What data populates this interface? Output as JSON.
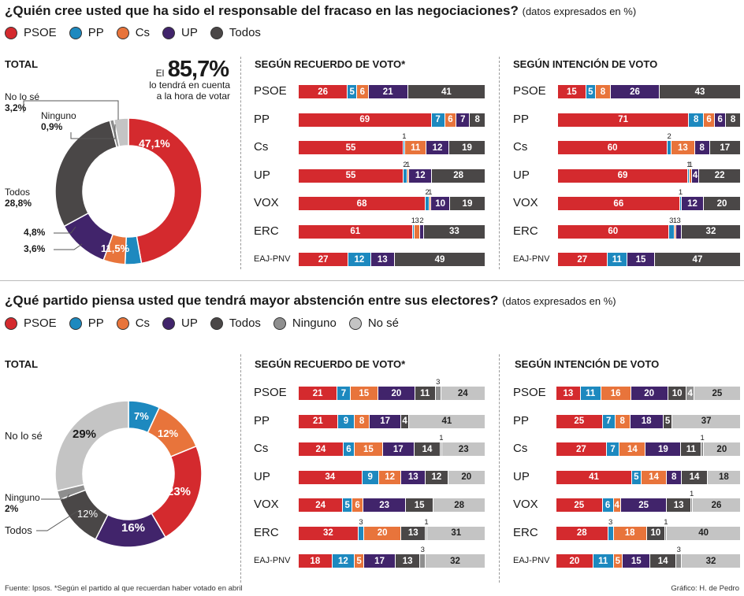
{
  "colors": {
    "PSOE": "#d42a2e",
    "PP": "#1d89bf",
    "Cs": "#e8743b",
    "UP": "#41246b",
    "Todos": "#4a4747",
    "Ninguno": "#8e8e8e",
    "No se": "#c4c4c4"
  },
  "q1": {
    "title": "¿Quién cree usted que ha sido el responsable del fracaso en las negociaciones?",
    "subtitle": "(datos expresados en %)",
    "legend": [
      {
        "label": "PSOE",
        "key": "PSOE"
      },
      {
        "label": "PP",
        "key": "PP"
      },
      {
        "label": "Cs",
        "key": "Cs"
      },
      {
        "label": "UP",
        "key": "UP"
      },
      {
        "label": "Todos",
        "key": "Todos"
      }
    ],
    "total_label": "TOTAL",
    "callout_el": "El",
    "callout_value": "85,7%",
    "callout_text1": "lo tendrá en cuenta",
    "callout_text2": "a la hora de votar",
    "header_recuerdo": "SEGÚN RECUERDO DE VOTO*",
    "header_intencion": "SEGÚN INTENCIÓN DE VOTO",
    "pie_labels": {
      "nose": "No lo sé",
      "nose_v": "3,2%",
      "ninguno": "Ninguno",
      "ninguno_v": "0,9%",
      "todos": "Todos",
      "todos_v": "28,8%",
      "cs_v": "4,8%",
      "pp_v": "3,6%",
      "up_v": "11,5%",
      "psoe_v": "47,1%"
    }
  },
  "q2": {
    "title": "¿Qué partido piensa usted que tendrá mayor abstención entre sus electores?",
    "subtitle": "(datos expresados en %)",
    "legend": [
      {
        "label": "PSOE",
        "key": "PSOE"
      },
      {
        "label": "PP",
        "key": "PP"
      },
      {
        "label": "Cs",
        "key": "Cs"
      },
      {
        "label": "UP",
        "key": "UP"
      },
      {
        "label": "Todos",
        "key": "Todos"
      },
      {
        "label": "Ninguno",
        "key": "Ninguno"
      },
      {
        "label": "No sé",
        "key": "No se"
      }
    ],
    "total_label": "TOTAL",
    "header_recuerdo": "SEGÚN RECUERDO DE VOTO*",
    "header_intencion": "SEGÚN INTENCIÓN DE VOTO",
    "pie_labels": {
      "nose": "No lo sé",
      "nose_v": "29%",
      "ninguno": "Ninguno",
      "ninguno_v": "2%",
      "todos": "Todos",
      "todos_v": "12%",
      "pp_v": "7%",
      "cs_v": "12%",
      "psoe_v": "23%",
      "up_v": "16%"
    }
  },
  "footer": {
    "source": "Fuente: Ipsos. *Según el partido al que recuerdan haber votado en abril",
    "credit": "Gráfico: H. de Pedro"
  },
  "chart_data": [
    {
      "type": "pie",
      "title": "TOTAL",
      "categories": [
        "PSOE",
        "PP",
        "Cs",
        "UP",
        "Todos",
        "Ninguno",
        "No lo sé"
      ],
      "values": [
        47.1,
        3.6,
        4.8,
        11.5,
        28.8,
        0.9,
        3.2
      ]
    },
    {
      "type": "bar",
      "title": "SEGÚN RECUERDO DE VOTO*",
      "categories": [
        "PSOE",
        "PP",
        "Cs",
        "UP",
        "VOX",
        "ERC",
        "EAJ-PNV"
      ],
      "series": [
        {
          "name": "PSOE",
          "values": [
            26,
            69,
            55,
            55,
            68,
            61,
            27
          ]
        },
        {
          "name": "PP",
          "values": [
            5,
            7,
            1,
            2,
            2,
            1,
            12
          ]
        },
        {
          "name": "Cs",
          "values": [
            6,
            6,
            11,
            1,
            1,
            3,
            0
          ]
        },
        {
          "name": "UP",
          "values": [
            21,
            7,
            12,
            12,
            10,
            2,
            13
          ]
        },
        {
          "name": "Todos",
          "values": [
            41,
            8,
            19,
            28,
            19,
            33,
            49
          ]
        }
      ]
    },
    {
      "type": "bar",
      "title": "SEGÚN INTENCIÓN DE VOTO",
      "categories": [
        "PSOE",
        "PP",
        "Cs",
        "UP",
        "VOX",
        "ERC",
        "EAJ-PNV"
      ],
      "series": [
        {
          "name": "PSOE",
          "values": [
            15,
            71,
            60,
            69,
            66,
            60,
            27
          ]
        },
        {
          "name": "PP",
          "values": [
            5,
            8,
            2,
            1,
            1,
            3,
            11
          ]
        },
        {
          "name": "Cs",
          "values": [
            8,
            6,
            13,
            1,
            0,
            1,
            0
          ]
        },
        {
          "name": "UP",
          "values": [
            26,
            6,
            8,
            4,
            12,
            3,
            15
          ]
        },
        {
          "name": "Todos",
          "values": [
            43,
            8,
            17,
            22,
            20,
            32,
            47
          ]
        }
      ]
    },
    {
      "type": "pie",
      "title": "TOTAL",
      "categories": [
        "PP",
        "Cs",
        "PSOE",
        "UP",
        "Todos",
        "Ninguno",
        "No lo sé"
      ],
      "values": [
        7,
        12,
        23,
        16,
        12,
        2,
        29
      ]
    },
    {
      "type": "bar",
      "title": "SEGÚN RECUERDO DE VOTO*",
      "categories": [
        "PSOE",
        "PP",
        "Cs",
        "UP",
        "VOX",
        "ERC",
        "EAJ-PNV"
      ],
      "series": [
        {
          "name": "PSOE",
          "values": [
            21,
            21,
            24,
            34,
            24,
            32,
            18
          ]
        },
        {
          "name": "PP",
          "values": [
            7,
            9,
            6,
            9,
            5,
            3,
            12
          ]
        },
        {
          "name": "Cs",
          "values": [
            15,
            8,
            15,
            12,
            6,
            20,
            5
          ]
        },
        {
          "name": "UP",
          "values": [
            20,
            17,
            17,
            13,
            23,
            0,
            17
          ]
        },
        {
          "name": "Todos",
          "values": [
            11,
            4,
            14,
            12,
            15,
            13,
            13
          ]
        },
        {
          "name": "Ninguno",
          "values": [
            3,
            0,
            1,
            0,
            0,
            1,
            3
          ]
        },
        {
          "name": "No sé",
          "values": [
            24,
            41,
            23,
            20,
            28,
            31,
            32
          ]
        }
      ]
    },
    {
      "type": "bar",
      "title": "SEGÚN INTENCIÓN DE VOTO",
      "categories": [
        "PSOE",
        "PP",
        "Cs",
        "UP",
        "VOX",
        "ERC",
        "EAJ-PNV"
      ],
      "series": [
        {
          "name": "PSOE",
          "values": [
            13,
            25,
            27,
            41,
            25,
            28,
            20
          ]
        },
        {
          "name": "PP",
          "values": [
            11,
            7,
            7,
            5,
            6,
            3,
            11
          ]
        },
        {
          "name": "Cs",
          "values": [
            16,
            8,
            14,
            14,
            4,
            18,
            5
          ]
        },
        {
          "name": "UP",
          "values": [
            20,
            18,
            19,
            8,
            25,
            0,
            15
          ]
        },
        {
          "name": "Todos",
          "values": [
            10,
            5,
            11,
            14,
            13,
            10,
            14
          ]
        },
        {
          "name": "Ninguno",
          "values": [
            4,
            0,
            1,
            0,
            1,
            1,
            3
          ]
        },
        {
          "name": "No sé",
          "values": [
            25,
            37,
            20,
            18,
            26,
            40,
            32
          ]
        }
      ]
    }
  ]
}
